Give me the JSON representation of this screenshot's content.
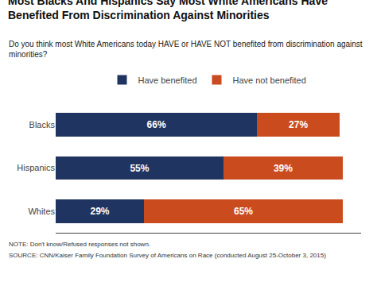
{
  "chart_data": {
    "type": "bar",
    "orientation": "horizontal",
    "stacked": true,
    "title": "Most Blacks And Hispanics Say Most White Americans Have\nBenefited From Discrimination Against Minorities",
    "subtitle": "Do you think most White Americans today HAVE or HAVE NOT benefited from discrimination against minorities?",
    "annotations": [
      "NOTE: Don't know/Refused responses not shown.",
      "SOURCE: CNN/Kaiser Family Foundation Survey of Americans on Race (conducted August 25-October 3, 2015)"
    ],
    "categories": [
      "Blacks",
      "Hispanics",
      "Whites"
    ],
    "series": [
      {
        "name": "Have benefited",
        "color": "#1F3461",
        "values": [
          66,
          55,
          29
        ],
        "value_labels": [
          "66%",
          "55%",
          "29%"
        ]
      },
      {
        "name": "Have not benefited",
        "color": "#C94B1E",
        "values": [
          27,
          39,
          65
        ],
        "value_labels": [
          "27%",
          "39%",
          "65%"
        ]
      }
    ],
    "xlim": [
      0,
      100
    ],
    "data_labels": true,
    "tick_labels": "y",
    "grid": false,
    "legend": "top"
  }
}
